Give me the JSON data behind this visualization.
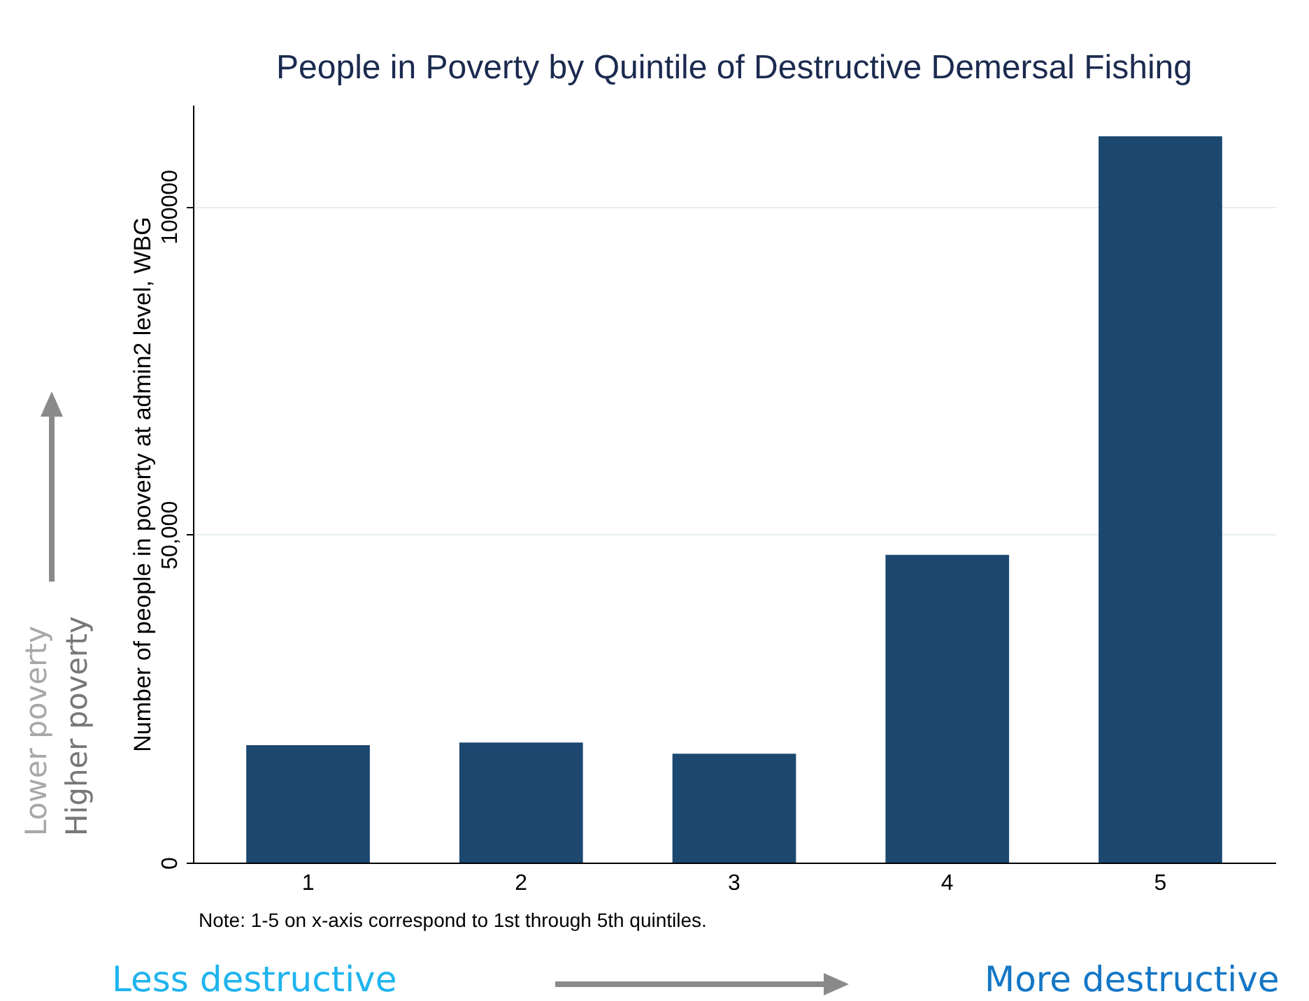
{
  "chart_data": {
    "type": "bar",
    "title": "People in Poverty by Quintile of Destructive Demersal Fishing",
    "ylabel": "Number of people in poverty at admin2 level, WBG",
    "categories": [
      "1",
      "2",
      "3",
      "4",
      "5"
    ],
    "values": [
      17900,
      18300,
      16600,
      46900,
      110700
    ],
    "color": "#1c4870",
    "ylim": [
      0,
      115500
    ],
    "yticks": [
      0,
      {
        "value": 50000,
        "label": "50,000"
      },
      100000
    ],
    "grid": "y",
    "annotations": [
      "Note: 1-5 on x-axis correspond to 1st through 5th quintiles.",
      "Lower poverty",
      "Higher poverty",
      "Less destructive",
      "More destructive"
    ]
  }
}
